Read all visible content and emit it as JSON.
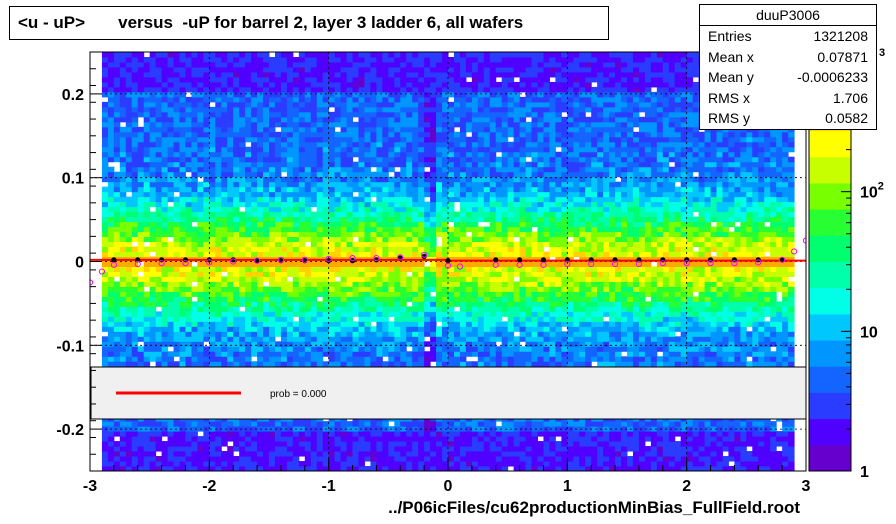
{
  "title": "<u - uP>       versus  -uP for barrel 2, layer 3 ladder 6, all wafers",
  "stats": {
    "name": "duuP3006",
    "rows": [
      {
        "label": "Entries",
        "value": "1321208"
      },
      {
        "label": "Mean x",
        "value": "0.07871"
      },
      {
        "label": "Mean y",
        "value": "-0.0006233"
      },
      {
        "label": "RMS x",
        "value": "1.706"
      },
      {
        "label": "RMS y",
        "value": "0.0582"
      }
    ]
  },
  "legend": {
    "text": "prob = 0.000"
  },
  "footer": "../P06icFiles/cu62productionMinBias_FullField.root",
  "colorbar": {
    "ticks": [
      {
        "label": "1",
        "value": 1
      },
      {
        "label": "10",
        "value": 10
      },
      {
        "label": "10",
        "sup": "2",
        "value": 100
      }
    ],
    "top_exponent": "3"
  },
  "chart_data": {
    "type": "heatmap",
    "title": "<u - uP>       versus  -uP for barrel 2, layer 3 ladder 6, all wafers",
    "xlabel": "",
    "ylabel": "",
    "xlim": [
      -3,
      3
    ],
    "ylim": [
      -0.25,
      0.25
    ],
    "x_ticks": [
      -3,
      -2,
      -1,
      0,
      1,
      2,
      3
    ],
    "x_tick_labels": [
      "-3",
      "-2",
      "-1",
      "0",
      "1",
      "2",
      "3"
    ],
    "y_ticks": [
      -0.2,
      -0.1,
      0,
      0.1,
      0.2
    ],
    "y_tick_labels": [
      "-0.2",
      "-0.1",
      "0",
      "0.1",
      "0.2"
    ],
    "grid": true,
    "z_scale": "log",
    "zlim": [
      1,
      1000
    ],
    "series": [
      {
        "name": "mean-black",
        "marker": "filled-circle",
        "color": "#000000",
        "x": [
          -2.8,
          -2.6,
          -2.4,
          -2.2,
          -2.0,
          -1.8,
          -1.6,
          -1.4,
          -1.2,
          -1.0,
          -0.8,
          -0.6,
          -0.4,
          -0.2,
          0.0,
          0.4,
          0.6,
          0.8,
          1.0,
          1.2,
          1.4,
          1.6,
          1.8,
          2.0,
          2.2,
          2.4,
          2.6,
          2.8
        ],
        "y": [
          0.002,
          0.002,
          0.002,
          0.002,
          0.002,
          0.002,
          0.001,
          0.001,
          0.001,
          0.001,
          0.001,
          0.002,
          0.004,
          0.006,
          0.001,
          0.002,
          0.002,
          0.002,
          0.002,
          0.002,
          0.002,
          0.002,
          0.002,
          0.002,
          0.002,
          0.002,
          0.002,
          0.002
        ]
      },
      {
        "name": "mean-magenta",
        "marker": "open-circle",
        "color": "#ff00ff",
        "x": [
          -3.0,
          -2.9,
          -2.8,
          -2.6,
          -2.4,
          -2.2,
          -2.0,
          -1.8,
          -1.6,
          -1.4,
          -1.2,
          -1.0,
          -0.8,
          -0.6,
          -0.4,
          -0.2,
          0.0,
          0.1,
          0.4,
          0.6,
          0.8,
          1.0,
          1.2,
          1.4,
          1.6,
          1.8,
          2.0,
          2.2,
          2.4,
          2.6,
          2.8,
          2.9,
          3.0
        ],
        "y": [
          -0.025,
          -0.012,
          -0.004,
          -0.003,
          -0.002,
          -0.002,
          -0.001,
          0.0,
          0.001,
          0.002,
          0.002,
          0.003,
          0.004,
          0.004,
          0.005,
          0.008,
          -0.005,
          -0.006,
          -0.004,
          -0.004,
          -0.004,
          -0.003,
          -0.003,
          -0.003,
          -0.003,
          -0.002,
          -0.002,
          -0.002,
          -0.002,
          -0.001,
          0.002,
          0.012,
          0.025
        ]
      },
      {
        "name": "fit-red",
        "marker": "line",
        "color": "#ff0000",
        "x": [
          -3,
          0,
          0,
          3
        ],
        "y": [
          0.002,
          0.002,
          0.001,
          0.001
        ]
      }
    ]
  }
}
